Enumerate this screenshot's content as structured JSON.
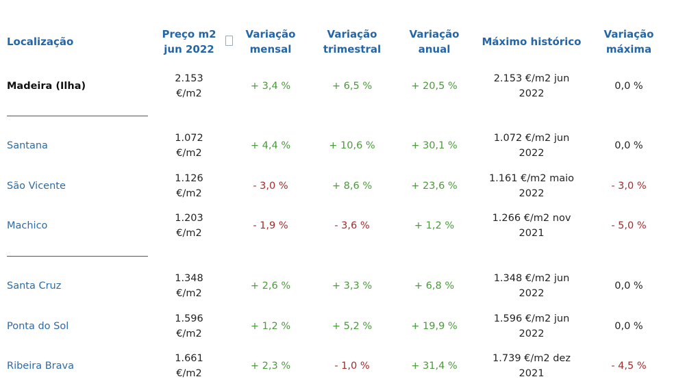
{
  "headers": {
    "location": "Localização",
    "price_line1": "Preço m2",
    "price_line2": "jun 2022",
    "monthly_line1": "Variação",
    "monthly_line2": "mensal",
    "quarterly_line1": "Variação",
    "quarterly_line2": "trimestral",
    "annual_line1": "Variação",
    "annual_line2": "anual",
    "max_historic": "Máximo histórico",
    "max_var_line1": "Variação",
    "max_var_line2": "máxima"
  },
  "rows": [
    {
      "name": "Madeira (Ilha)",
      "price_line1": "2.153",
      "price_line2": "€/m2",
      "monthly": "+ 3,4 %",
      "quarterly": "+ 6,5 %",
      "annual": "+ 20,5 %",
      "max_line1": "2.153 €/m2 jun",
      "max_line2": "2022",
      "max_var": "0,0 %"
    },
    {
      "name": "Santana",
      "price_line1": "1.072",
      "price_line2": "€/m2",
      "monthly": "+ 4,4 %",
      "quarterly": "+ 10,6 %",
      "annual": "+ 30,1 %",
      "max_line1": "1.072 €/m2 jun",
      "max_line2": "2022",
      "max_var": "0,0 %"
    },
    {
      "name": "São Vicente",
      "price_line1": "1.126",
      "price_line2": "€/m2",
      "monthly": "- 3,0 %",
      "quarterly": "+ 8,6 %",
      "annual": "+ 23,6 %",
      "max_line1": "1.161 €/m2 maio",
      "max_line2": "2022",
      "max_var": "- 3,0 %"
    },
    {
      "name": "Machico",
      "price_line1": "1.203",
      "price_line2": "€/m2",
      "monthly": "- 1,9 %",
      "quarterly": "- 3,6 %",
      "annual": "+ 1,2 %",
      "max_line1": "1.266 €/m2 nov",
      "max_line2": "2021",
      "max_var": "- 5,0 %"
    },
    {
      "name": "Santa Cruz",
      "price_line1": "1.348",
      "price_line2": "€/m2",
      "monthly": "+ 2,6 %",
      "quarterly": "+ 3,3 %",
      "annual": "+ 6,8 %",
      "max_line1": "1.348 €/m2 jun",
      "max_line2": "2022",
      "max_var": "0,0 %"
    },
    {
      "name": "Ponta do Sol",
      "price_line1": "1.596",
      "price_line2": "€/m2",
      "monthly": "+ 1,2 %",
      "quarterly": "+ 5,2 %",
      "annual": "+ 19,9 %",
      "max_line1": "1.596 €/m2 jun",
      "max_line2": "2022",
      "max_var": "0,0 %"
    },
    {
      "name": "Ribeira Brava",
      "price_line1": "1.661",
      "price_line2": "€/m2",
      "monthly": "+ 2,3 %",
      "quarterly": "- 1,0 %",
      "annual": "+ 31,4 %",
      "max_line1": "1.739 €/m2 dez",
      "max_line2": "2021",
      "max_var": "- 4,5 %"
    }
  ],
  "colors": {
    "header": "#2566a8",
    "location_link": "#2e6aa6",
    "positive": "#4a9a3a",
    "negative": "#a52a2a"
  },
  "icons": {
    "sort": "sort-icon"
  }
}
